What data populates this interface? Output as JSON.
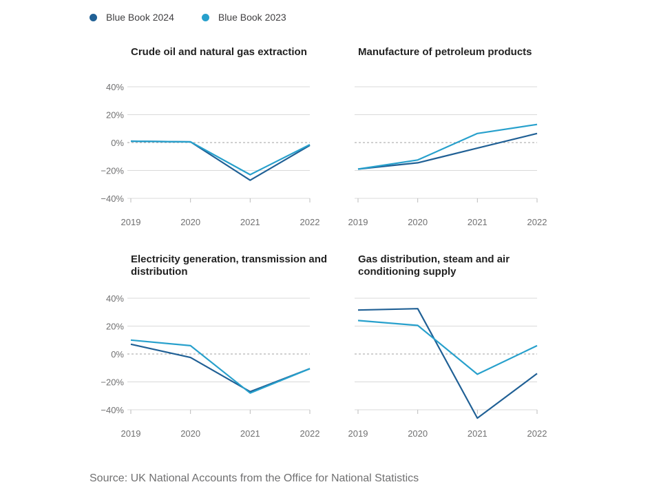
{
  "legend": {
    "series_2024": "Blue Book 2024",
    "series_2023": "Blue Book 2023"
  },
  "colors": {
    "series_2024": "#206095",
    "series_2023": "#27a0cc",
    "grid": "#d9d9d9",
    "zero_line": "#a0a0a0",
    "tick_text": "#707071"
  },
  "source": "Source: UK National Accounts from the Office for National Statistics",
  "chart_data": [
    {
      "type": "line",
      "title": "Crude oil and natural gas extraction",
      "x": [
        "2019",
        "2020",
        "2021",
        "2022"
      ],
      "ylim": [
        -40,
        40
      ],
      "yticks": [
        "40%",
        "20%",
        "0%",
        "−20%",
        "−40%"
      ],
      "series": [
        {
          "name": "Blue Book 2024",
          "values": [
            1,
            0.5,
            -27,
            -2
          ]
        },
        {
          "name": "Blue Book 2023",
          "values": [
            1,
            0.5,
            -23,
            -1.5
          ]
        }
      ]
    },
    {
      "type": "line",
      "title": "Manufacture of petroleum products",
      "x": [
        "2019",
        "2020",
        "2021",
        "2022"
      ],
      "ylim": [
        -40,
        40
      ],
      "yticks": [
        "40%",
        "20%",
        "0%",
        "−20%",
        "−40%"
      ],
      "series": [
        {
          "name": "Blue Book 2024",
          "values": [
            -19,
            -14.5,
            -4,
            6.5
          ]
        },
        {
          "name": "Blue Book 2023",
          "values": [
            -19,
            -12.5,
            6.5,
            13
          ]
        }
      ]
    },
    {
      "type": "line",
      "title": "Electricity generation, transmission and distribution",
      "x": [
        "2019",
        "2020",
        "2021",
        "2022"
      ],
      "ylim": [
        -40,
        40
      ],
      "yticks": [
        "40%",
        "20%",
        "0%",
        "−20%",
        "−40%"
      ],
      "series": [
        {
          "name": "Blue Book 2024",
          "values": [
            7,
            -2.5,
            -27,
            -10.5
          ]
        },
        {
          "name": "Blue Book 2023",
          "values": [
            10,
            6,
            -28,
            -10.5
          ]
        }
      ]
    },
    {
      "type": "line",
      "title": "Gas distribution, steam and air conditioning supply",
      "x": [
        "2019",
        "2020",
        "2021",
        "2022"
      ],
      "ylim": [
        -40,
        40
      ],
      "yticks": [
        "40%",
        "20%",
        "0%",
        "−20%",
        "−40%"
      ],
      "series": [
        {
          "name": "Blue Book 2024",
          "values": [
            31.5,
            32.5,
            -46,
            -14
          ]
        },
        {
          "name": "Blue Book 2023",
          "values": [
            24,
            20.5,
            -14.5,
            6
          ]
        }
      ]
    }
  ]
}
